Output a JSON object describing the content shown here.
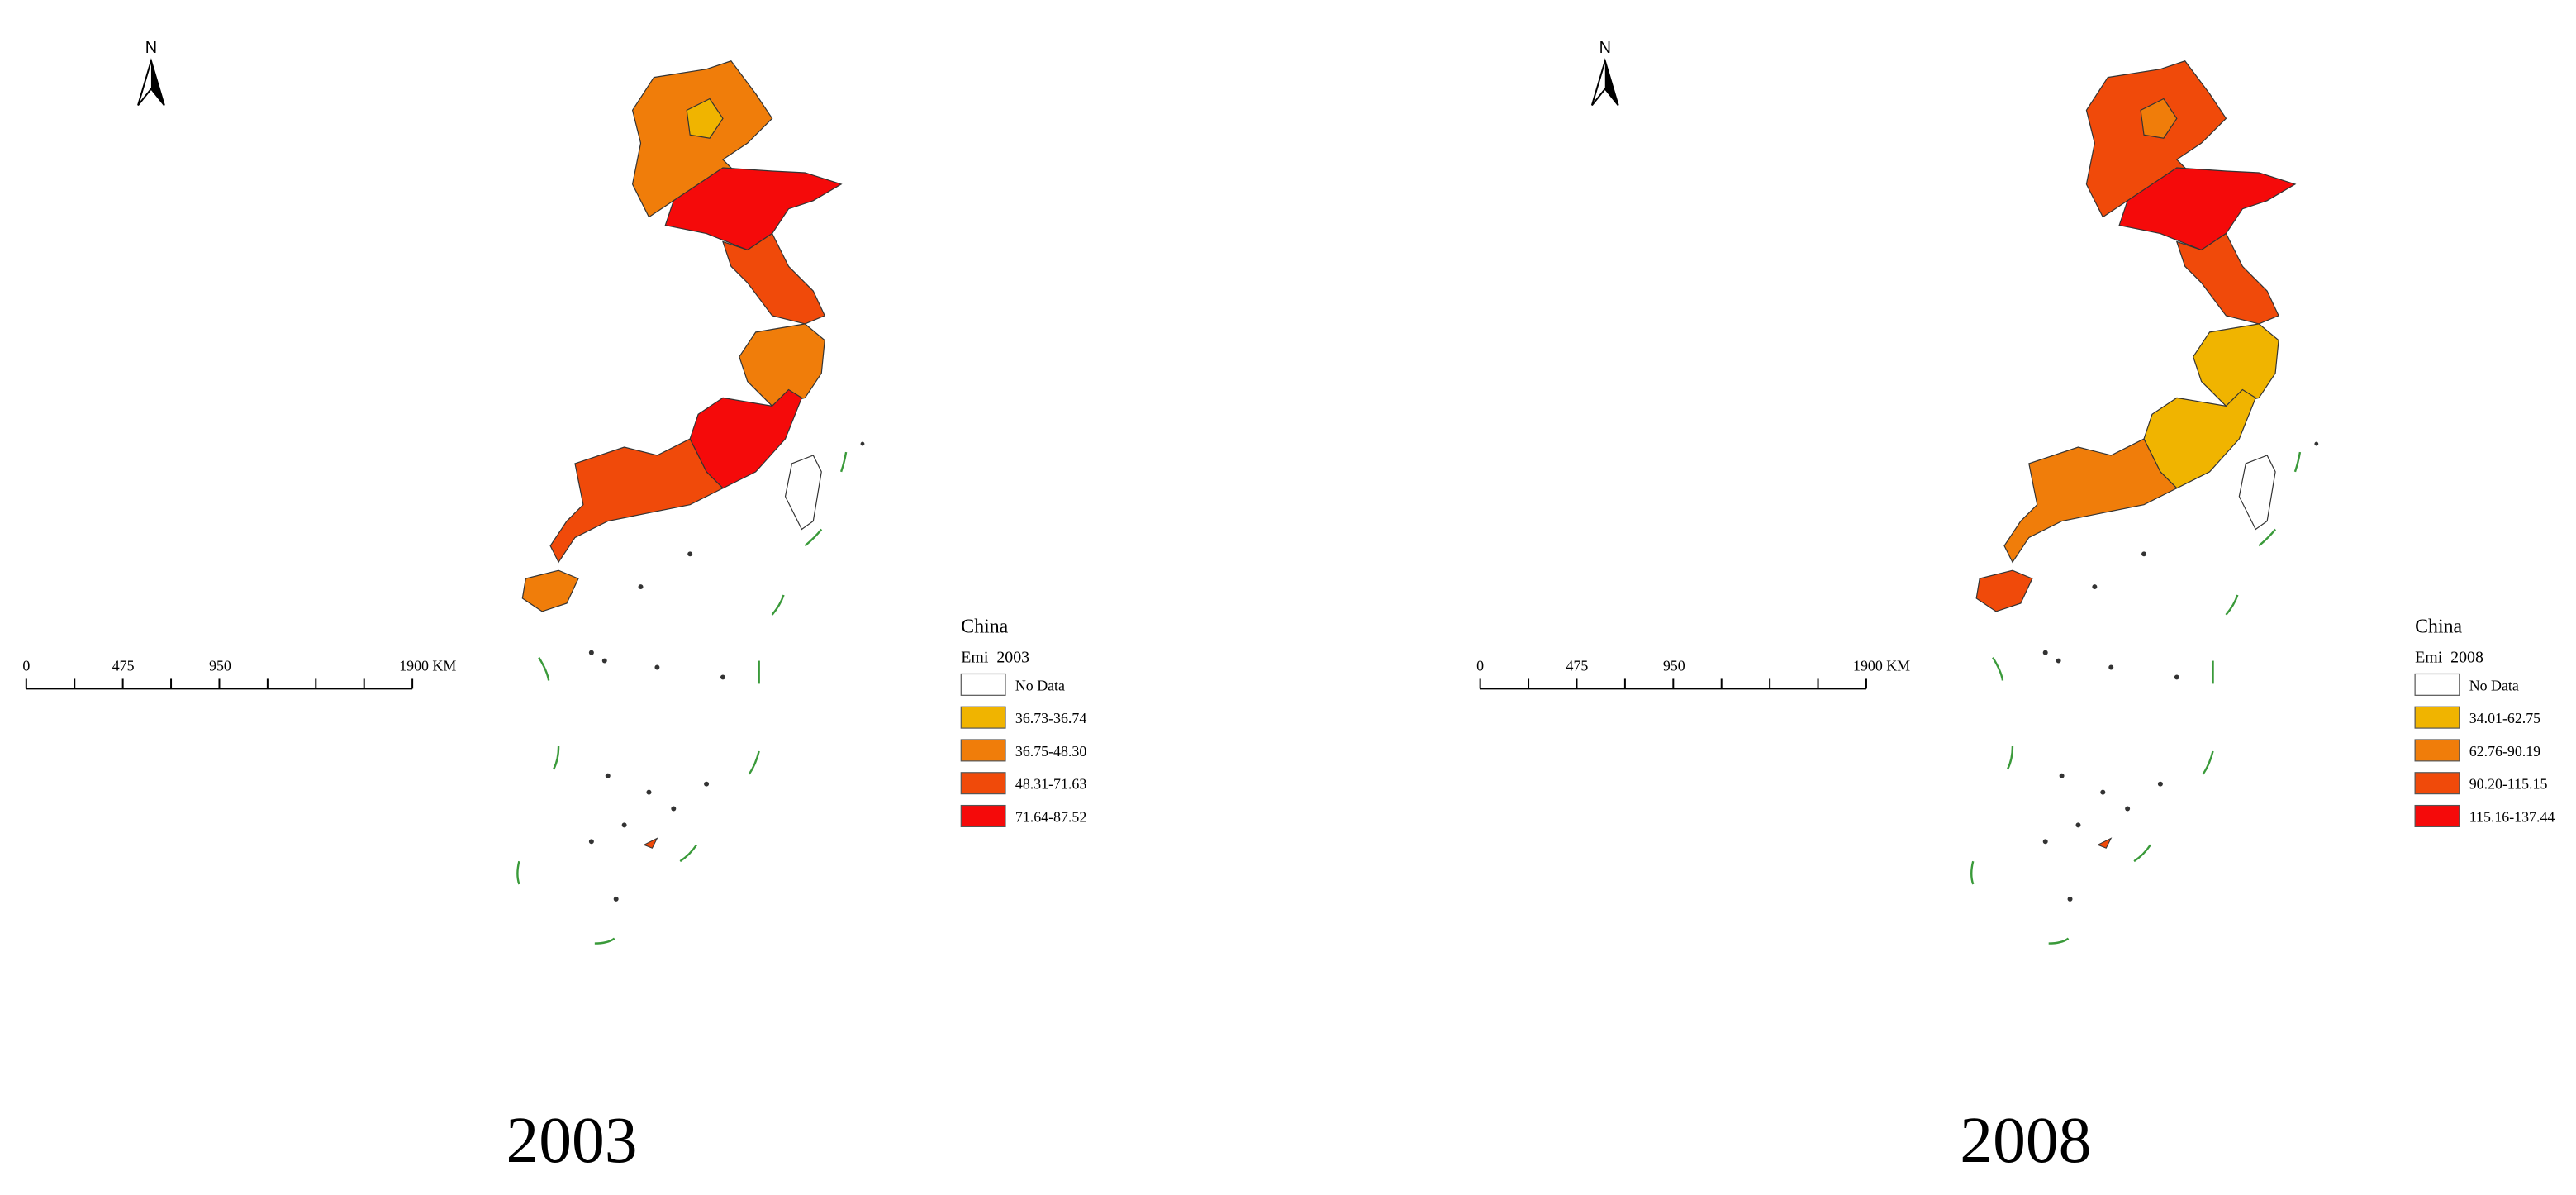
{
  "maps": [
    {
      "north": "N",
      "scale_labels": [
        "0",
        "475",
        "950",
        "1900 KM"
      ],
      "legend": {
        "title": "China",
        "field": "Emi_2003",
        "items": [
          {
            "label": "No Data",
            "color": "#ffffff"
          },
          {
            "label": "36.73-36.74",
            "color": "#f0b400"
          },
          {
            "label": "36.75-48.30",
            "color": "#f07d0a"
          },
          {
            "label": "48.31-71.63",
            "color": "#f04a0a"
          },
          {
            "label": "71.64-87.52",
            "color": "#f50a0a"
          }
        ]
      },
      "caption": "2003"
    },
    {
      "north": "N",
      "scale_labels": [
        "0",
        "475",
        "950",
        "1900 KM"
      ],
      "legend": {
        "title": "China",
        "field": "Emi_2008",
        "items": [
          {
            "label": "No Data",
            "color": "#ffffff"
          },
          {
            "label": "34.01-62.75",
            "color": "#f0b400"
          },
          {
            "label": "62.76-90.19",
            "color": "#f07d0a"
          },
          {
            "label": "90.20-115.15",
            "color": "#f04a0a"
          },
          {
            "label": "115.16-137.44",
            "color": "#f50a0a"
          }
        ]
      },
      "caption": "2008"
    }
  ]
}
